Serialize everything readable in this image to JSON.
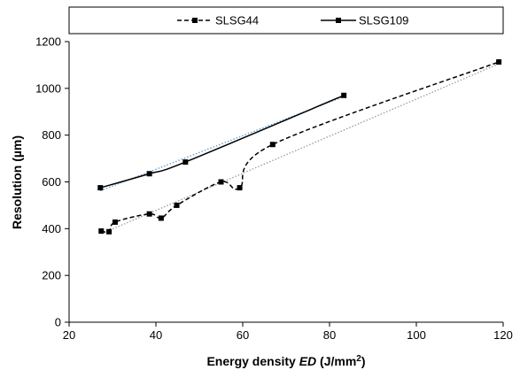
{
  "chart_data": {
    "type": "scatter",
    "xlabel": {
      "prefix": "Energy density ",
      "italic": "ED",
      "unit_open": " (J/mm",
      "sup": "2",
      "unit_close": ")"
    },
    "ylabel": "Resolution (µm)",
    "xlim": [
      20,
      120
    ],
    "ylim": [
      0,
      1200
    ],
    "x_ticks": [
      20,
      40,
      60,
      80,
      100,
      120
    ],
    "y_ticks": [
      0,
      200,
      400,
      600,
      800,
      1000,
      1200
    ],
    "grid": false,
    "legend_position": "top",
    "series": [
      {
        "name": "SLSG44",
        "line_style": "dashed",
        "color": "#000000",
        "marker": "square",
        "x": [
          27.4,
          29.2,
          30.6,
          38.5,
          41.2,
          44.8,
          55.0,
          59.3,
          66.9,
          119.0
        ],
        "y": [
          390,
          387,
          428,
          463,
          445,
          500,
          600,
          575,
          760,
          1113
        ],
        "trendline": {
          "style": "dotted",
          "color": "#9a9a9a",
          "x": [
            27.4,
            119.0
          ],
          "y": [
            378,
            1105
          ]
        }
      },
      {
        "name": "SLSG109",
        "line_style": "solid",
        "color": "#000000",
        "marker": "square",
        "x": [
          27.2,
          38.5,
          46.8,
          83.3
        ],
        "y": [
          575,
          635,
          685,
          970
        ],
        "trendline": {
          "style": "dotted",
          "color": "#5b9bd5",
          "x": [
            27.2,
            83.3
          ],
          "y": [
            562,
            965
          ]
        }
      }
    ]
  }
}
